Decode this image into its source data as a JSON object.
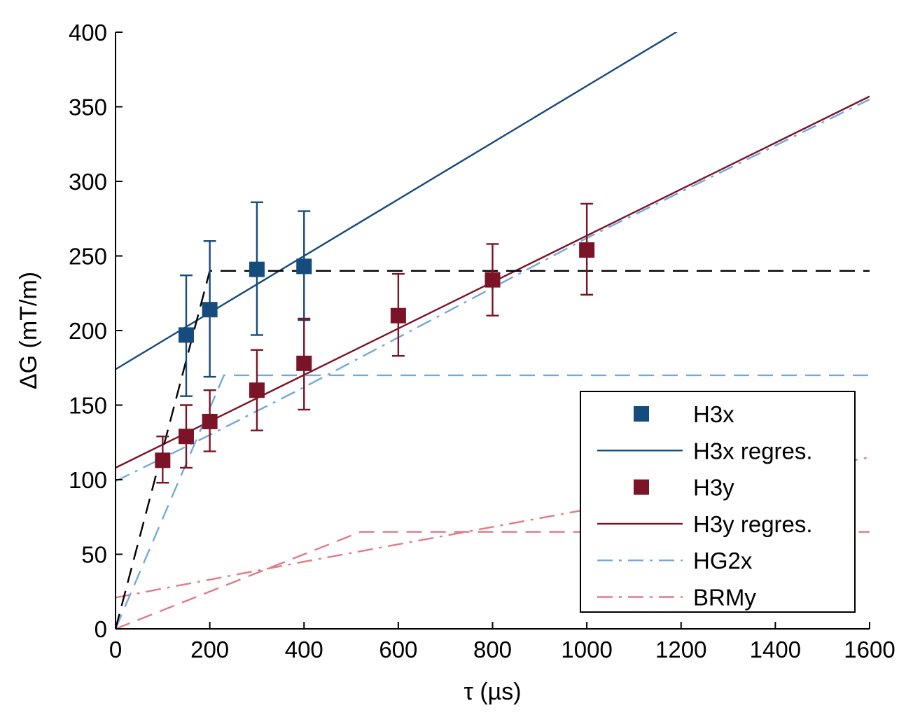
{
  "chart_data": {
    "type": "scatter",
    "title": "",
    "xlabel": "τ (µs)",
    "ylabel": "ΔG (mT/m)",
    "xlim": [
      0,
      1600
    ],
    "ylim": [
      0,
      400
    ],
    "xticks": [
      0,
      200,
      400,
      600,
      800,
      1000,
      1200,
      1400,
      1600
    ],
    "yticks": [
      0,
      50,
      100,
      150,
      200,
      250,
      300,
      350,
      400
    ],
    "grid": false,
    "legend_position": "bottom-right",
    "series": [
      {
        "name": "H3x",
        "kind": "markers",
        "color": "#154b7d",
        "points": [
          {
            "x": 150,
            "y": 197,
            "lo": 156,
            "hi": 237
          },
          {
            "x": 200,
            "y": 214,
            "lo": 169,
            "hi": 260
          },
          {
            "x": 300,
            "y": 241,
            "lo": 197,
            "hi": 286
          },
          {
            "x": 400,
            "y": 243,
            "lo": 207,
            "hi": 280
          }
        ]
      },
      {
        "name": "H3x regres.",
        "kind": "line",
        "color": "#154b7d",
        "dash": "solid",
        "x": [
          0,
          1200
        ],
        "y": [
          174,
          402
        ]
      },
      {
        "name": "H3y",
        "kind": "markers",
        "color": "#7a1426",
        "points": [
          {
            "x": 100,
            "y": 113,
            "lo": 98,
            "hi": 129
          },
          {
            "x": 150,
            "y": 129,
            "lo": 108,
            "hi": 150
          },
          {
            "x": 200,
            "y": 139,
            "lo": 119,
            "hi": 160
          },
          {
            "x": 300,
            "y": 160,
            "lo": 133,
            "hi": 187
          },
          {
            "x": 400,
            "y": 178,
            "lo": 147,
            "hi": 208
          },
          {
            "x": 600,
            "y": 210,
            "lo": 183,
            "hi": 238
          },
          {
            "x": 800,
            "y": 234,
            "lo": 210,
            "hi": 258
          },
          {
            "x": 1000,
            "y": 254,
            "lo": 224,
            "hi": 285
          }
        ]
      },
      {
        "name": "H3y regres.",
        "kind": "line",
        "color": "#7a1426",
        "dash": "solid",
        "x": [
          0,
          1600
        ],
        "y": [
          108,
          357
        ]
      },
      {
        "name": "HG2x",
        "kind": "line",
        "color": "#73a8dc",
        "dash": "dashdot",
        "x": [
          0,
          200,
          400,
          1000,
          1600
        ],
        "y": [
          99,
          130,
          162,
          262,
          355
        ]
      },
      {
        "name": "BRMy",
        "kind": "line",
        "color": "#e27a88",
        "dash": "dashdot",
        "x": [
          0,
          400,
          1000,
          1600
        ],
        "y": [
          21,
          45,
          80,
          115
        ]
      },
      {
        "name": "",
        "kind": "line",
        "color": "#73a8dc",
        "dash": "dash",
        "x": [
          0,
          230,
          1600
        ],
        "y": [
          0,
          170,
          170
        ]
      },
      {
        "name": "",
        "kind": "line",
        "color": "#e27a88",
        "dash": "dash",
        "x": [
          0,
          520,
          1600
        ],
        "y": [
          0,
          65,
          65
        ]
      },
      {
        "name": "",
        "kind": "line",
        "color": "#000000",
        "dash": "dash",
        "x": [
          0,
          200,
          1600
        ],
        "y": [
          0,
          240,
          240
        ]
      }
    ],
    "legend": [
      "H3x",
      "H3x regres.",
      "H3y",
      "H3y regres.",
      "HG2x",
      "BRMy"
    ]
  }
}
